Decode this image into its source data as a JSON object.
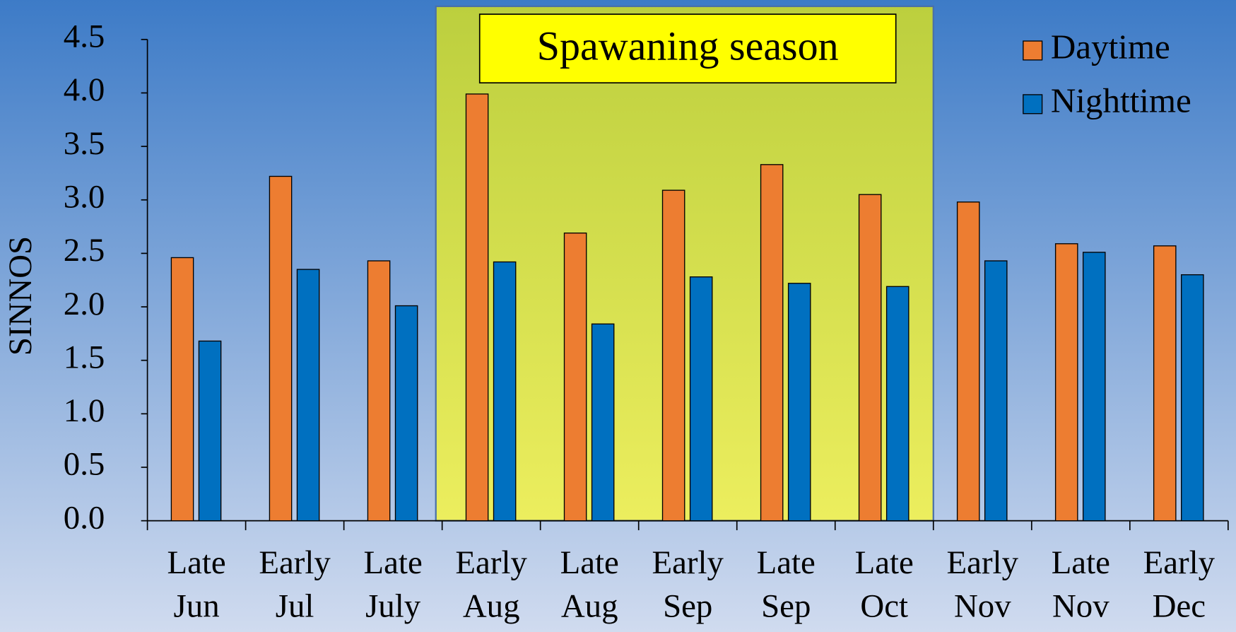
{
  "chart_data": {
    "type": "bar",
    "ylabel": "SINNOS",
    "categories": [
      [
        "Late",
        "Jun"
      ],
      [
        "Early",
        "Jul"
      ],
      [
        "Late",
        "July"
      ],
      [
        "Early",
        "Aug"
      ],
      [
        "Late",
        "Aug"
      ],
      [
        "Early",
        "Sep"
      ],
      [
        "Late",
        "Sep"
      ],
      [
        "Late",
        "Oct"
      ],
      [
        "Early",
        "Nov"
      ],
      [
        "Late",
        "Nov"
      ],
      [
        "Early",
        "Dec"
      ]
    ],
    "series": [
      {
        "name": "Daytime",
        "color": "#ed7d31",
        "values": [
          2.46,
          3.22,
          2.43,
          3.99,
          2.69,
          3.09,
          3.33,
          3.05,
          2.98,
          2.59,
          2.57
        ]
      },
      {
        "name": "Nighttime",
        "color": "#0070c0",
        "values": [
          1.68,
          2.35,
          2.01,
          2.42,
          1.84,
          2.28,
          2.22,
          2.19,
          2.43,
          2.51,
          2.3
        ]
      }
    ],
    "ylim": [
      0,
      4.5
    ],
    "yticks": [
      {
        "value": 0,
        "label": "0.0"
      },
      0.5,
      {
        "value": 1,
        "label": "1.0"
      },
      1.5,
      {
        "value": 2,
        "label": "2.0"
      },
      2.5,
      {
        "value": 3,
        "label": "3.0"
      },
      3.5,
      {
        "value": 4,
        "label": "4.0"
      },
      4.5
    ],
    "highlight": {
      "text": "Spawaning season",
      "span": [
        3,
        7
      ],
      "color": "#d4e04c"
    },
    "legend": "top-right"
  }
}
